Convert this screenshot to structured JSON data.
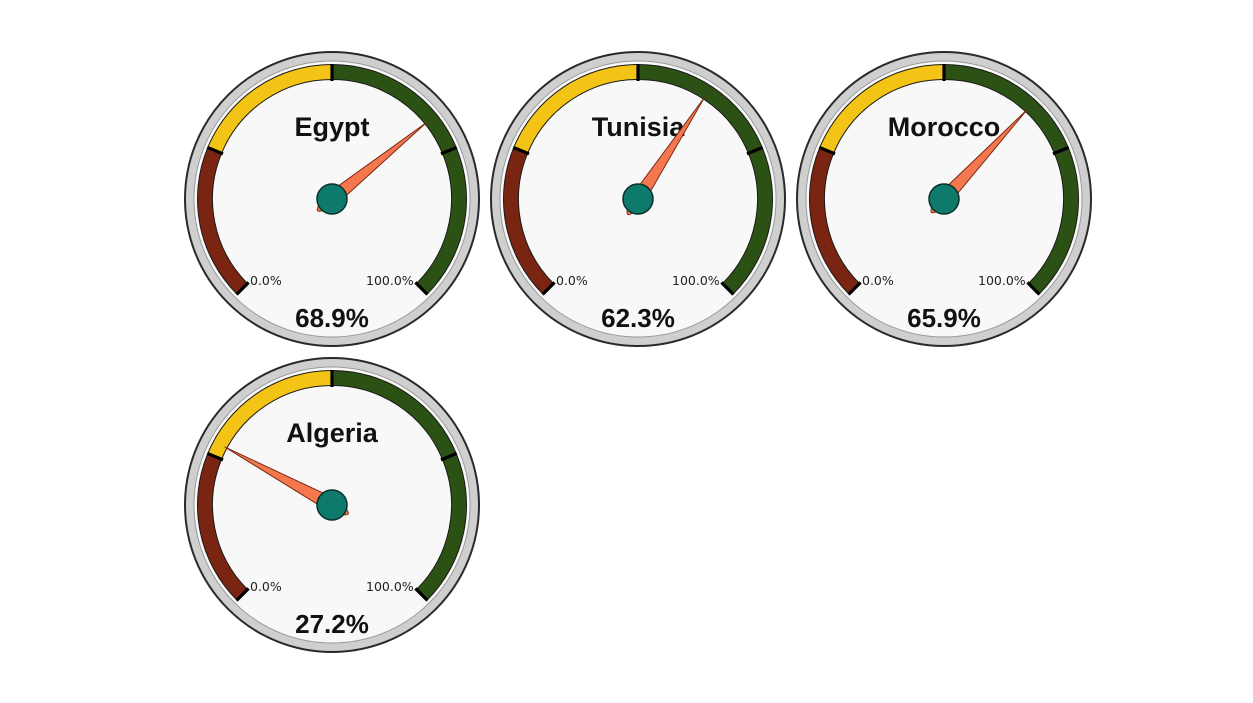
{
  "chart_data": {
    "type": "gauge",
    "scale": {
      "min_label": "0.0%",
      "max_label": "100.0%",
      "min": 0,
      "max": 100
    },
    "bands": [
      {
        "name": "low",
        "from": 0,
        "to": 25,
        "color": "#7a2412"
      },
      {
        "name": "mid",
        "from": 25,
        "to": 50,
        "color": "#f3c316"
      },
      {
        "name": "high",
        "from": 50,
        "to": 100,
        "color": "#2c5114"
      }
    ],
    "colors": {
      "needle": "#f4774f",
      "hub": "#0e7a6c",
      "face": "#f8f8f8",
      "rim": "#cfcfcf"
    },
    "gauges": [
      {
        "name": "Egypt",
        "value": 68.9,
        "value_label": "68.9%"
      },
      {
        "name": "Tunisia",
        "value": 62.3,
        "value_label": "62.3%"
      },
      {
        "name": "Morocco",
        "value": 65.9,
        "value_label": "65.9%"
      },
      {
        "name": "Algeria",
        "value": 27.2,
        "value_label": "27.2%"
      }
    ]
  }
}
